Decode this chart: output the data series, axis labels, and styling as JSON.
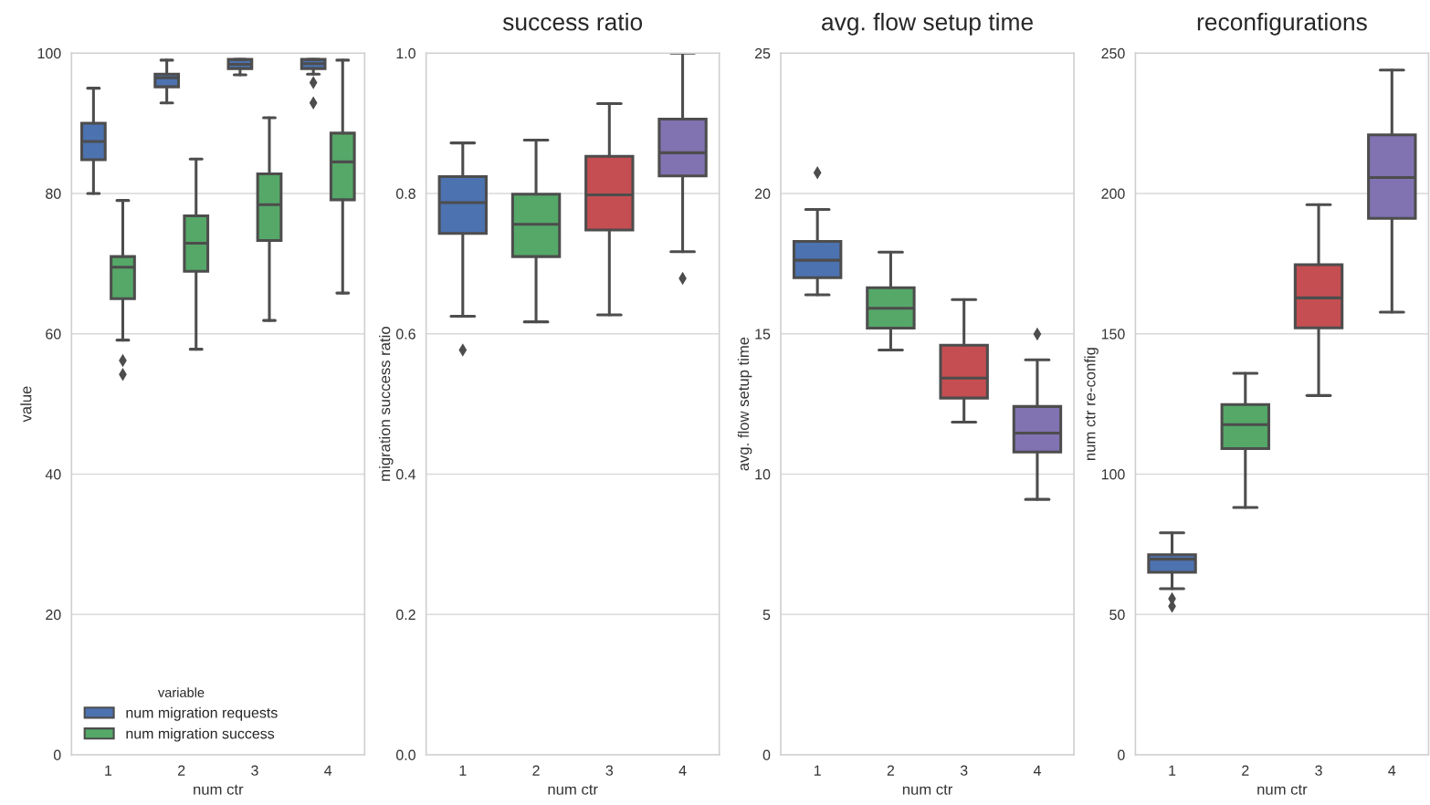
{
  "chart_data": [
    {
      "type": "box",
      "xlabel": "num ctr",
      "ylabel": "value",
      "categories": [
        "1",
        "2",
        "3",
        "4"
      ],
      "ylim": [
        0,
        100
      ],
      "yticks": [
        0,
        20,
        40,
        60,
        80,
        100
      ],
      "grid": "y",
      "legend": "bottom left",
      "legend_title": "variable",
      "series": [
        {
          "name": "num migration requests",
          "color": "#4c72b0",
          "boxes": [
            {
              "low": 80,
              "q1": 84.8,
              "median": 87.4,
              "q3": 90,
              "high": 95
            },
            {
              "low": 92.9,
              "q1": 95.2,
              "median": 96.5,
              "q3": 97,
              "high": 99
            },
            {
              "low": 96.9,
              "q1": 97.8,
              "median": 98.4,
              "q3": 99.1,
              "high": 99.1
            },
            {
              "low": 97,
              "q1": 97.8,
              "median": 98.5,
              "q3": 99.1,
              "high": 99.1,
              "outliers": [
                95.8,
                92.9
              ]
            }
          ]
        },
        {
          "name": "num migration success",
          "color": "#55a868",
          "boxes": [
            {
              "low": 59.1,
              "q1": 65,
              "median": 69.5,
              "q3": 71,
              "high": 79,
              "outliers": [
                56.2,
                54.2
              ]
            },
            {
              "low": 57.8,
              "q1": 68.9,
              "median": 72.9,
              "q3": 76.8,
              "high": 84.9
            },
            {
              "low": 61.9,
              "q1": 73.3,
              "median": 78.4,
              "q3": 82.8,
              "high": 90.8
            },
            {
              "low": 65.8,
              "q1": 79.1,
              "median": 84.5,
              "q3": 88.6,
              "high": 99
            }
          ]
        }
      ]
    },
    {
      "type": "box",
      "title": "success ratio",
      "xlabel": "num ctr",
      "ylabel": "migration success ratio",
      "categories": [
        "1",
        "2",
        "3",
        "4"
      ],
      "ylim": [
        0,
        1
      ],
      "yticks": [
        {
          "value": 0,
          "label": "0.0"
        },
        0.2,
        0.4,
        0.6,
        0.8,
        {
          "value": 1,
          "label": "1.0"
        }
      ],
      "grid": "y",
      "colors": [
        "#4c72b0",
        "#55a868",
        "#c44e52",
        "#8172b2"
      ],
      "boxes": [
        {
          "low": 0.625,
          "q1": 0.743,
          "median": 0.787,
          "q3": 0.824,
          "high": 0.872,
          "outliers": [
            0.577
          ]
        },
        {
          "low": 0.617,
          "q1": 0.71,
          "median": 0.756,
          "q3": 0.799,
          "high": 0.876
        },
        {
          "low": 0.627,
          "q1": 0.748,
          "median": 0.798,
          "q3": 0.853,
          "high": 0.928
        },
        {
          "low": 0.717,
          "q1": 0.825,
          "median": 0.858,
          "q3": 0.906,
          "high": 1.0,
          "outliers": [
            0.679
          ]
        }
      ]
    },
    {
      "type": "box",
      "title": "avg. flow setup time",
      "xlabel": "num ctr",
      "ylabel": "avg. flow setup time",
      "categories": [
        "1",
        "2",
        "3",
        "4"
      ],
      "ylim": [
        0,
        25
      ],
      "yticks": [
        0,
        5,
        10,
        15,
        20,
        25
      ],
      "grid": "y",
      "colors": [
        "#4c72b0",
        "#55a868",
        "#c44e52",
        "#8172b2"
      ],
      "boxes": [
        {
          "low": 16.39,
          "q1": 17.0,
          "median": 17.62,
          "q3": 18.29,
          "high": 19.43,
          "outliers": [
            20.74
          ]
        },
        {
          "low": 14.42,
          "q1": 15.2,
          "median": 15.91,
          "q3": 16.64,
          "high": 17.91
        },
        {
          "low": 11.85,
          "q1": 12.71,
          "median": 13.42,
          "q3": 14.59,
          "high": 16.22
        },
        {
          "low": 9.1,
          "q1": 10.79,
          "median": 11.46,
          "q3": 12.41,
          "high": 14.07,
          "outliers": [
            14.99
          ]
        }
      ]
    },
    {
      "type": "box",
      "title": "reconfigurations",
      "xlabel": "num ctr",
      "ylabel": "num ctr re-config",
      "categories": [
        "1",
        "2",
        "3",
        "4"
      ],
      "ylim": [
        0,
        250
      ],
      "yticks": [
        0,
        50,
        100,
        150,
        200,
        250
      ],
      "grid": "y",
      "colors": [
        "#4c72b0",
        "#55a868",
        "#c44e52",
        "#8172b2"
      ],
      "boxes": [
        {
          "low": 59.2,
          "q1": 65,
          "median": 69.7,
          "q3": 71.3,
          "high": 79.1,
          "outliers": [
            55.6,
            52.9
          ]
        },
        {
          "low": 88.1,
          "q1": 109.1,
          "median": 117.6,
          "q3": 124.8,
          "high": 135.9
        },
        {
          "low": 128,
          "q1": 152.1,
          "median": 162.8,
          "q3": 174.6,
          "high": 196
        },
        {
          "low": 157.7,
          "q1": 191.1,
          "median": 205.7,
          "q3": 220.9,
          "high": 244
        }
      ]
    }
  ]
}
